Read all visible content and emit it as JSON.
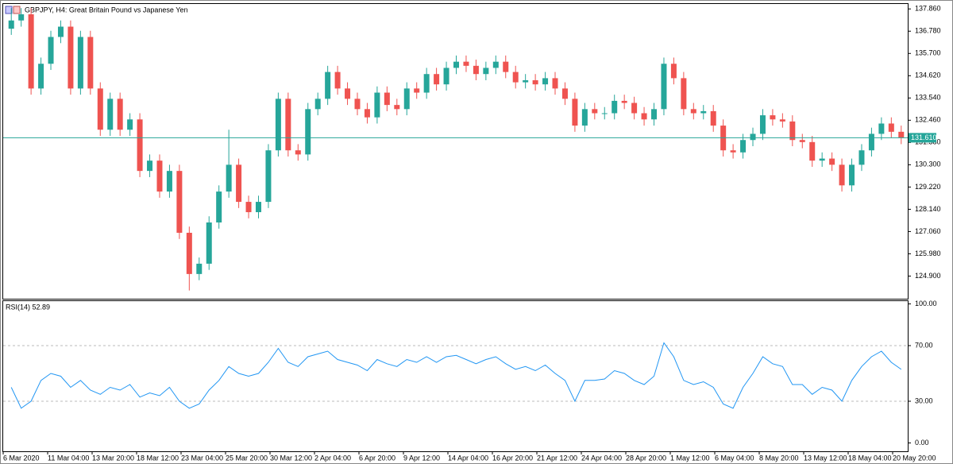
{
  "chart_data": [
    {
      "type": "candlestick",
      "title": "GBPJPY, H4:  Great Britain Pound vs Japanese Yen",
      "up_color": "#26a69a",
      "down_color": "#ef5350",
      "open": [
        136.9,
        137.3,
        137.6,
        134.0,
        135.2,
        136.5,
        137.0,
        134.0,
        136.5,
        134.0,
        132.0,
        133.5,
        132.0,
        132.5,
        130.0,
        130.5,
        129.0,
        130.0,
        127.0,
        125.0,
        125.5,
        127.5,
        129.0,
        130.3,
        128.5,
        128.0,
        128.5,
        131.0,
        133.5,
        131.0,
        130.8,
        133.0,
        133.5,
        134.8,
        134.0,
        133.5,
        133.0,
        132.6,
        133.8,
        133.2,
        133.0,
        134.0,
        133.8,
        134.7,
        134.2,
        135.0,
        135.3,
        135.1,
        134.7,
        135.0,
        135.3,
        134.8,
        134.3,
        134.4,
        134.2,
        134.5,
        134.0,
        133.5,
        132.2,
        133.0,
        132.8,
        132.8,
        133.4,
        133.3,
        132.8,
        132.5,
        133.0,
        135.2,
        134.5,
        133.0,
        132.8,
        132.9,
        132.2,
        131.0,
        130.9,
        131.5,
        131.8,
        132.7,
        132.5,
        132.4,
        131.5,
        131.4,
        130.5,
        130.6,
        130.3,
        129.3,
        130.3,
        131.0,
        131.8,
        132.3,
        131.9
      ],
      "high": [
        137.9,
        137.9,
        137.9,
        135.5,
        136.8,
        137.3,
        137.3,
        136.8,
        136.8,
        134.3,
        133.8,
        133.8,
        132.8,
        132.8,
        130.8,
        130.8,
        130.3,
        130.3,
        127.3,
        125.8,
        127.8,
        129.3,
        132.0,
        130.6,
        128.8,
        128.8,
        131.3,
        133.8,
        133.8,
        131.3,
        133.3,
        133.8,
        135.1,
        135.1,
        134.3,
        133.8,
        133.3,
        134.1,
        134.1,
        133.5,
        134.3,
        134.3,
        135.0,
        135.0,
        135.3,
        135.6,
        135.6,
        135.4,
        135.3,
        135.6,
        135.6,
        135.1,
        134.7,
        134.7,
        134.8,
        134.8,
        134.3,
        133.8,
        133.3,
        133.3,
        133.1,
        133.7,
        133.7,
        133.6,
        133.1,
        133.3,
        135.5,
        135.5,
        134.8,
        133.3,
        133.2,
        133.2,
        132.5,
        131.3,
        131.8,
        132.1,
        133.0,
        133.0,
        132.8,
        132.7,
        131.8,
        131.7,
        130.9,
        130.9,
        130.6,
        130.6,
        131.3,
        132.1,
        132.6,
        132.6,
        132.2
      ],
      "low": [
        136.6,
        137.0,
        133.7,
        133.7,
        134.9,
        136.2,
        133.7,
        133.7,
        133.7,
        131.7,
        131.7,
        131.7,
        131.7,
        129.7,
        129.7,
        128.7,
        128.7,
        126.7,
        124.2,
        124.7,
        125.2,
        127.2,
        128.7,
        128.2,
        127.7,
        127.7,
        128.2,
        130.7,
        130.7,
        130.5,
        130.5,
        132.7,
        133.2,
        133.7,
        133.2,
        132.7,
        132.3,
        132.3,
        132.9,
        132.7,
        132.7,
        133.5,
        133.5,
        133.9,
        133.9,
        134.7,
        134.8,
        134.4,
        134.4,
        134.7,
        134.5,
        134.0,
        134.0,
        133.9,
        133.9,
        133.7,
        133.2,
        131.9,
        131.9,
        132.5,
        132.5,
        132.5,
        133.0,
        132.5,
        132.2,
        132.2,
        132.7,
        134.2,
        132.7,
        132.5,
        132.5,
        131.9,
        130.7,
        130.6,
        130.6,
        131.2,
        131.5,
        132.2,
        132.1,
        131.2,
        131.1,
        130.2,
        130.2,
        130.0,
        129.0,
        129.0,
        130.0,
        130.7,
        131.5,
        131.6,
        131.3
      ],
      "close": [
        137.3,
        137.6,
        134.0,
        135.2,
        136.5,
        137.0,
        134.0,
        136.5,
        134.0,
        132.0,
        133.5,
        132.0,
        132.5,
        130.0,
        130.5,
        129.0,
        130.0,
        127.0,
        125.0,
        125.5,
        127.5,
        129.0,
        130.3,
        128.5,
        128.0,
        128.5,
        131.0,
        133.5,
        131.0,
        130.8,
        133.0,
        133.5,
        134.8,
        134.0,
        133.5,
        133.0,
        132.6,
        133.8,
        133.2,
        133.0,
        134.0,
        133.8,
        134.7,
        134.2,
        135.0,
        135.3,
        135.1,
        134.7,
        135.0,
        135.3,
        134.8,
        134.3,
        134.4,
        134.2,
        134.5,
        134.0,
        133.5,
        132.2,
        133.0,
        132.8,
        132.8,
        133.4,
        133.3,
        132.8,
        132.5,
        133.0,
        135.2,
        134.5,
        133.0,
        132.8,
        132.9,
        132.2,
        131.0,
        130.9,
        131.5,
        131.8,
        132.7,
        132.5,
        132.4,
        131.5,
        131.4,
        130.5,
        130.6,
        130.3,
        129.3,
        130.3,
        131.0,
        131.8,
        132.3,
        131.9,
        131.6
      ],
      "ylim": [
        123.8,
        138.1
      ],
      "yticks": [
        {
          "value": 137.86,
          "label": "137.860"
        },
        {
          "value": 136.78,
          "label": "136.780"
        },
        {
          "value": 135.7,
          "label": "135.700"
        },
        {
          "value": 134.62,
          "label": "134.620"
        },
        {
          "value": 133.54,
          "label": "133.540"
        },
        {
          "value": 132.46,
          "label": "132.460"
        },
        {
          "value": 131.38,
          "label": "131.380"
        },
        {
          "value": 130.3,
          "label": "130.300"
        },
        {
          "value": 129.22,
          "label": "129.220"
        },
        {
          "value": 128.14,
          "label": "128.140"
        },
        {
          "value": 127.06,
          "label": "127.060"
        },
        {
          "value": 125.98,
          "label": "125.980"
        },
        {
          "value": 124.9,
          "label": "124.900"
        }
      ],
      "current_price": {
        "value": 131.61,
        "label": "131.610"
      },
      "current_color": "#26a69a"
    },
    {
      "type": "line",
      "title": "RSI(14) 52.89",
      "color": "#2196f3",
      "values": [
        40,
        25,
        30,
        45,
        50,
        48,
        40,
        45,
        38,
        35,
        40,
        38,
        42,
        33,
        36,
        34,
        40,
        30,
        25,
        28,
        38,
        45,
        55,
        50,
        48,
        50,
        58,
        68,
        58,
        55,
        62,
        64,
        66,
        60,
        58,
        56,
        52,
        60,
        57,
        55,
        60,
        58,
        62,
        58,
        62,
        63,
        60,
        57,
        60,
        62,
        57,
        53,
        55,
        52,
        56,
        50,
        45,
        30,
        45,
        45,
        46,
        52,
        50,
        45,
        42,
        48,
        72,
        62,
        45,
        42,
        44,
        40,
        28,
        25,
        40,
        50,
        62,
        57,
        55,
        42,
        42,
        35,
        40,
        38,
        30,
        45,
        55,
        62,
        66,
        58,
        52.89
      ],
      "ylim": [
        -6,
        102
      ],
      "yticks": [
        {
          "value": 100,
          "label": "100.00"
        },
        {
          "value": 70,
          "label": "70.00"
        },
        {
          "value": 30,
          "label": "30.00"
        },
        {
          "value": 0,
          "label": "0.00"
        }
      ],
      "x_labels": [
        "6 Mar 2020",
        "11 Mar 04:00",
        "13 Mar 20:00",
        "18 Mar 12:00",
        "23 Mar 04:00",
        "25 Mar 20:00",
        "30 Mar 12:00",
        "2 Apr 04:00",
        "6 Apr 20:00",
        "9 Apr 12:00",
        "14 Apr 04:00",
        "16 Apr 20:00",
        "21 Apr 12:00",
        "24 Apr 04:00",
        "28 Apr 20:00",
        "1 May 12:00",
        "6 May 04:00",
        "8 May 20:00",
        "13 May 12:00",
        "18 May 04:00",
        "20 May 20:00"
      ]
    }
  ]
}
